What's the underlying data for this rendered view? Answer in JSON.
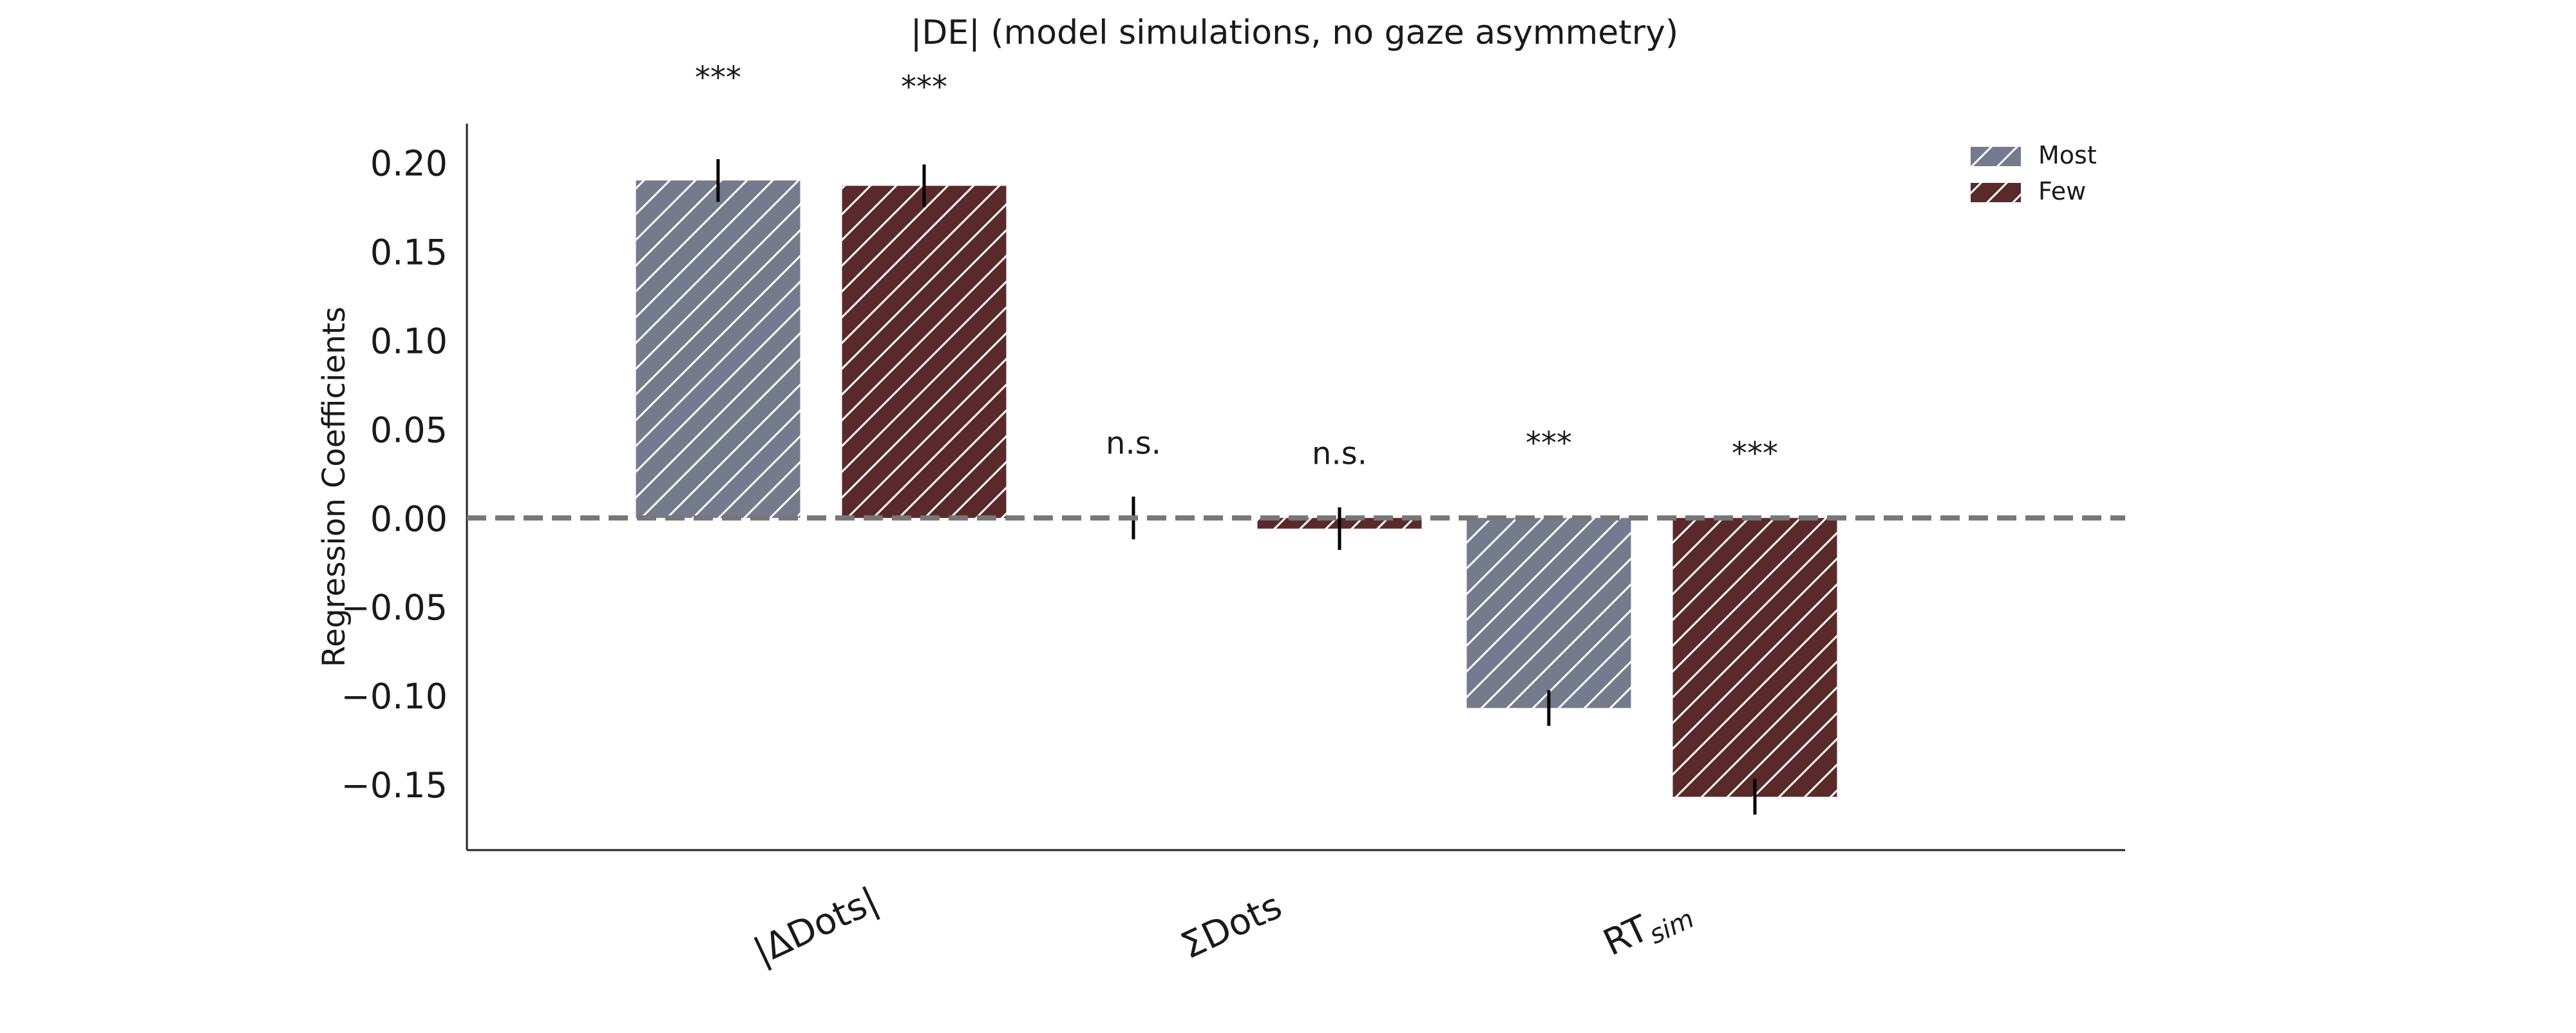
{
  "chart_data": {
    "type": "bar",
    "title": "|DE| (model simulations, no gaze asymmetry)",
    "xlabel": "",
    "ylabel": "Regression Coefficients",
    "categories": [
      "|ΔDots|",
      "ΣDots",
      "RT_sim"
    ],
    "category_labels": [
      {
        "main": "|ΔDots|",
        "sub": ""
      },
      {
        "main": "ΣDots",
        "sub": ""
      },
      {
        "main": "RT",
        "sub": "sim"
      }
    ],
    "series": [
      {
        "name": "Most",
        "color": "#737b8c",
        "values": [
          0.19,
          0.0,
          -0.107
        ],
        "errors": [
          0.012,
          0.012,
          0.01
        ],
        "significance": [
          "***",
          "n.s.",
          "***"
        ]
      },
      {
        "name": "Few",
        "color": "#5a2a2a",
        "values": [
          0.187,
          -0.006,
          -0.157
        ],
        "errors": [
          0.012,
          0.012,
          0.01
        ],
        "significance": [
          "***",
          "n.s.",
          "***"
        ]
      }
    ],
    "ylim": [
      -0.187,
      0.222
    ],
    "yticks": [
      "0.20",
      "0.15",
      "0.10",
      "0.05",
      "0.00",
      "−0.05",
      "−0.10",
      "−0.15"
    ],
    "ytick_values": [
      0.2,
      0.15,
      0.1,
      0.05,
      0.0,
      -0.05,
      -0.1,
      -0.15
    ],
    "reference_line": 0,
    "grid": false,
    "hatch": "diagonal",
    "legend_position": "top-right"
  }
}
